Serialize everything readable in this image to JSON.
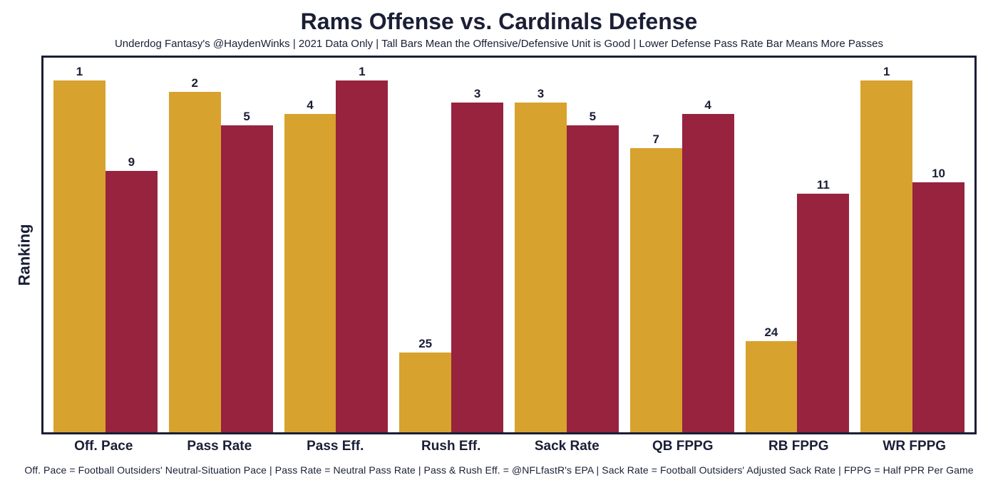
{
  "title": "Rams Offense vs. Cardinals Defense",
  "subtitle": "Underdog Fantasy's @HaydenWinks | 2021 Data Only | Tall Bars Mean the Offensive/Defensive Unit is Good | Lower Defense Pass Rate Bar Means More Passes",
  "ylabel": "Ranking",
  "footer": "Off. Pace = Football Outsiders' Neutral-Situation Pace | Pass Rate = Neutral Pass Rate | Pass & Rush Eff. = @NFLfastR's EPA | Sack Rate = Football Outsiders' Adjusted Sack Rate | FPPG = Half PPR Per Game",
  "chart": {
    "type": "bar",
    "background_color": "#ffffff",
    "border_color": "#1a1f36",
    "border_width": 3,
    "title_fontsize": 32,
    "subtitle_fontsize": 15,
    "ylabel_fontsize": 22,
    "xtick_fontsize": 19,
    "value_label_fontsize": 17,
    "footer_fontsize": 14,
    "text_color": "#1a1f36",
    "bar_colors": [
      "#d8a22e",
      "#97233f"
    ],
    "series_names": [
      "Rams Offense",
      "Cardinals Defense"
    ],
    "rank_scale_min": 32,
    "rank_scale_max": 1,
    "bar_width": 0.5,
    "categories": [
      "Off. Pace",
      "Pass Rate",
      "Pass Eff.",
      "Rush Eff.",
      "Sack Rate",
      "QB FPPG",
      "RB FPPG",
      "WR FPPG"
    ],
    "values": [
      [
        1,
        9
      ],
      [
        2,
        5
      ],
      [
        4,
        1
      ],
      [
        25,
        3
      ],
      [
        3,
        5
      ],
      [
        7,
        4
      ],
      [
        24,
        11
      ],
      [
        1,
        10
      ]
    ]
  }
}
